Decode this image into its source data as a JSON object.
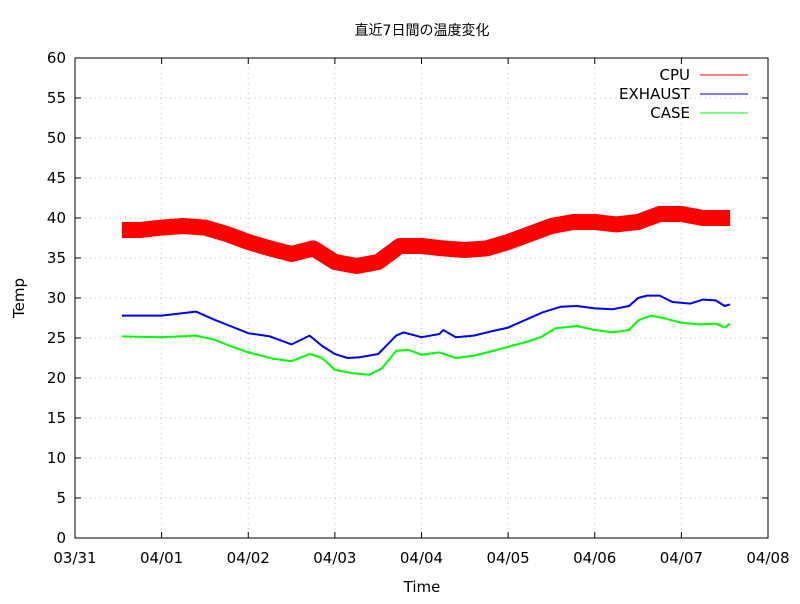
{
  "chart_data": {
    "type": "line",
    "title": "直近7日間の温度変化",
    "xlabel": "Time",
    "ylabel": "Temp",
    "xlim": [
      "03/31",
      "04/08"
    ],
    "ylim": [
      0,
      60
    ],
    "x_ticks": [
      "03/31",
      "04/01",
      "04/02",
      "04/03",
      "04/04",
      "04/05",
      "04/06",
      "04/07",
      "04/08"
    ],
    "y_ticks": [
      0,
      5,
      10,
      15,
      20,
      25,
      30,
      35,
      40,
      45,
      50,
      55,
      60
    ],
    "grid": true,
    "legend_position": "top-right",
    "series": [
      {
        "name": "CPU",
        "color": "#ff0000",
        "points": [
          [
            "03/31 13:00",
            38.5
          ],
          [
            "03/31 18:00",
            38.5
          ],
          [
            "04/01 00:00",
            38.8
          ],
          [
            "04/01 06:00",
            39
          ],
          [
            "04/01 12:00",
            38.8
          ],
          [
            "04/01 18:00",
            38
          ],
          [
            "04/02 00:00",
            37
          ],
          [
            "04/02 06:00",
            36.2
          ],
          [
            "04/02 12:00",
            35.5
          ],
          [
            "04/02 18:00",
            36.2
          ],
          [
            "04/03 00:00",
            34.5
          ],
          [
            "04/03 06:00",
            34
          ],
          [
            "04/03 12:00",
            34.5
          ],
          [
            "04/03 18:00",
            36.5
          ],
          [
            "04/04 00:00",
            36.5
          ],
          [
            "04/04 06:00",
            36.2
          ],
          [
            "04/04 12:00",
            36
          ],
          [
            "04/04 18:00",
            36.2
          ],
          [
            "04/05 00:00",
            37
          ],
          [
            "04/05 06:00",
            38
          ],
          [
            "04/05 12:00",
            39
          ],
          [
            "04/05 18:00",
            39.5
          ],
          [
            "04/06 00:00",
            39.5
          ],
          [
            "04/06 06:00",
            39.2
          ],
          [
            "04/06 12:00",
            39.5
          ],
          [
            "04/06 18:00",
            40.5
          ],
          [
            "04/07 00:00",
            40.5
          ],
          [
            "04/07 06:00",
            40
          ],
          [
            "04/07 13:30",
            40
          ]
        ]
      },
      {
        "name": "EXHAUST",
        "color": "#0000ff",
        "points": [
          [
            "03/31 13:00",
            27.8
          ],
          [
            "04/01 00:00",
            27.8
          ],
          [
            "04/01 09:30",
            28.3
          ],
          [
            "04/01 14:30",
            27.3
          ],
          [
            "04/01 19:00",
            26.5
          ],
          [
            "04/02 00:00",
            25.6
          ],
          [
            "04/02 06:00",
            25.2
          ],
          [
            "04/02 12:00",
            24.2
          ],
          [
            "04/02 17:00",
            25.3
          ],
          [
            "04/02 20:30",
            24
          ],
          [
            "04/03 00:00",
            23
          ],
          [
            "04/03 03:30",
            22.5
          ],
          [
            "04/03 07:00",
            22.6
          ],
          [
            "04/03 12:00",
            23
          ],
          [
            "04/03 17:00",
            25.3
          ],
          [
            "04/03 19:00",
            25.7
          ],
          [
            "04/04 00:00",
            25.1
          ],
          [
            "04/04 05:00",
            25.5
          ],
          [
            "04/04 06:00",
            26
          ],
          [
            "04/04 09:30",
            25.1
          ],
          [
            "04/04 14:30",
            25.3
          ],
          [
            "04/04 19:00",
            25.8
          ],
          [
            "04/05 00:00",
            26.3
          ],
          [
            "04/05 05:00",
            27.3
          ],
          [
            "04/05 09:30",
            28.2
          ],
          [
            "04/05 14:30",
            28.9
          ],
          [
            "04/05 19:00",
            29
          ],
          [
            "04/06 00:00",
            28.7
          ],
          [
            "04/06 05:00",
            28.6
          ],
          [
            "04/06 09:30",
            29
          ],
          [
            "04/06 12:00",
            30
          ],
          [
            "04/06 14:30",
            30.3
          ],
          [
            "04/06 18:00",
            30.3
          ],
          [
            "04/06 21:30",
            29.5
          ],
          [
            "04/07 02:30",
            29.3
          ],
          [
            "04/07 06:00",
            29.8
          ],
          [
            "04/07 09:30",
            29.7
          ],
          [
            "04/07 12:00",
            29
          ],
          [
            "04/07 13:30",
            29.2
          ]
        ]
      },
      {
        "name": "CASE",
        "color": "#00ff00",
        "points": [
          [
            "03/31 13:00",
            25.2
          ],
          [
            "04/01 00:00",
            25.1
          ],
          [
            "04/01 09:30",
            25.3
          ],
          [
            "04/01 14:30",
            24.8
          ],
          [
            "04/01 19:00",
            24
          ],
          [
            "04/02 00:00",
            23.2
          ],
          [
            "04/02 07:00",
            22.4
          ],
          [
            "04/02 12:00",
            22.1
          ],
          [
            "04/02 17:00",
            23
          ],
          [
            "04/02 20:30",
            22.5
          ],
          [
            "04/03 00:00",
            21
          ],
          [
            "04/03 05:00",
            20.6
          ],
          [
            "04/03 09:30",
            20.4
          ],
          [
            "04/03 13:00",
            21.2
          ],
          [
            "04/03 17:00",
            23.4
          ],
          [
            "04/03 20:30",
            23.5
          ],
          [
            "04/04 00:00",
            22.9
          ],
          [
            "04/04 05:00",
            23.2
          ],
          [
            "04/04 09:30",
            22.5
          ],
          [
            "04/04 14:30",
            22.8
          ],
          [
            "04/04 19:00",
            23.3
          ],
          [
            "04/05 00:00",
            23.9
          ],
          [
            "04/05 05:00",
            24.5
          ],
          [
            "04/05 09:30",
            25.2
          ],
          [
            "04/05 13:00",
            26.2
          ],
          [
            "04/05 19:00",
            26.5
          ],
          [
            "04/06 00:00",
            26
          ],
          [
            "04/06 05:00",
            25.7
          ],
          [
            "04/06 09:30",
            26
          ],
          [
            "04/06 12:00",
            27.2
          ],
          [
            "04/06 15:30",
            27.8
          ],
          [
            "04/06 19:00",
            27.5
          ],
          [
            "04/07 00:00",
            26.9
          ],
          [
            "04/07 05:00",
            26.7
          ],
          [
            "04/07 09:30",
            26.8
          ],
          [
            "04/07 12:00",
            26.3
          ],
          [
            "04/07 13:30",
            26.8
          ]
        ]
      }
    ]
  }
}
